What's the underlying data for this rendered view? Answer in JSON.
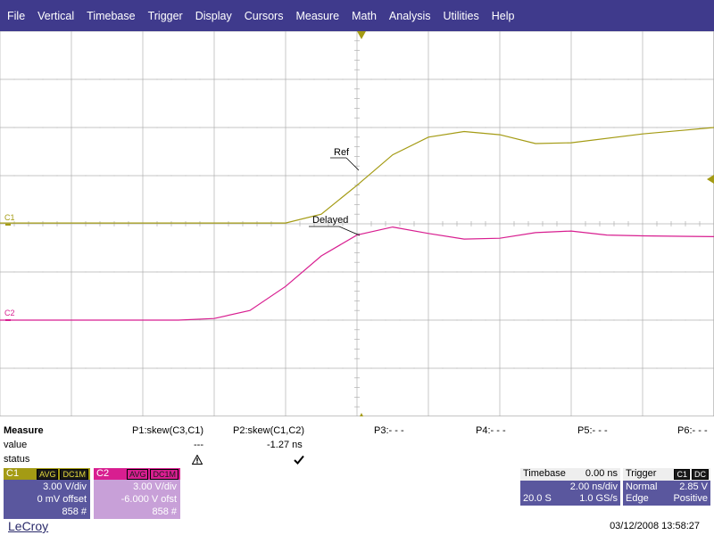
{
  "menu": [
    "File",
    "Vertical",
    "Timebase",
    "Trigger",
    "Display",
    "Cursors",
    "Measure",
    "Math",
    "Analysis",
    "Utilities",
    "Help"
  ],
  "colors": {
    "menubar": "#3f3a8c",
    "c1": "#a49b14",
    "c2": "#d81e90",
    "panel": "#5a579e",
    "c2panel": "#c8a0d8",
    "grid": "#b0b0b0"
  },
  "traces": {
    "c1": {
      "label": "C1",
      "annotation": "Ref",
      "t_ns": [
        -10,
        -6,
        -4,
        -2,
        -1,
        0,
        1,
        2,
        3,
        4,
        5,
        6,
        8,
        10
      ],
      "v": [
        0.05,
        0.05,
        0.05,
        0.05,
        0.6,
        2.4,
        4.3,
        5.4,
        5.75,
        5.55,
        5.0,
        5.05,
        5.6,
        6.0
      ]
    },
    "c2": {
      "label": "C2",
      "annotation": "Delayed",
      "t_ns": [
        -10,
        -5,
        -4,
        -3,
        -2,
        -1,
        0,
        1,
        2,
        3,
        4,
        5,
        6,
        7,
        8,
        10
      ],
      "v": [
        -6.0,
        -6.0,
        -5.9,
        -5.4,
        -3.9,
        -2.0,
        -0.7,
        -0.2,
        -0.6,
        -0.95,
        -0.9,
        -0.55,
        -0.45,
        -0.7,
        -0.75,
        -0.8
      ]
    }
  },
  "measure": {
    "title": "Measure",
    "row_value": "value",
    "row_status": "status",
    "params": [
      {
        "name": "P1:skew(C3,C1)",
        "value": "---",
        "status": "warning-icon"
      },
      {
        "name": "P2:skew(C1,C2)",
        "value": "-1.27 ns",
        "status": "check-icon"
      },
      {
        "name": "P3:- - -",
        "value": "",
        "status": ""
      },
      {
        "name": "P4:- - -",
        "value": "",
        "status": ""
      },
      {
        "name": "P5:- - -",
        "value": "",
        "status": ""
      },
      {
        "name": "P6:- - -",
        "value": "",
        "status": ""
      }
    ]
  },
  "channels": [
    {
      "name": "C1",
      "tags": [
        "AVG",
        "DC1M"
      ],
      "vdiv": "3.00 V/div",
      "offset": "0 mV offset",
      "count": "858 #"
    },
    {
      "name": "C2",
      "tags": [
        "AVG",
        "DC1M"
      ],
      "vdiv": "3.00 V/div",
      "offset": "-6.000 V ofst",
      "count": "858 #"
    }
  ],
  "timebase": {
    "title": "Timebase",
    "delay": "0.00 ns",
    "tdiv": "2.00 ns/div",
    "mode": "20.0 S",
    "rate": "1.0 GS/s"
  },
  "trigger": {
    "title": "Trigger",
    "tags": [
      "C1",
      "DC"
    ],
    "mode": "Normal",
    "level": "2.85 V",
    "type": "Edge",
    "slope": "Positive"
  },
  "footer": {
    "logo": "LeCroy",
    "timestamp": "03/12/2008 13:58:27"
  }
}
